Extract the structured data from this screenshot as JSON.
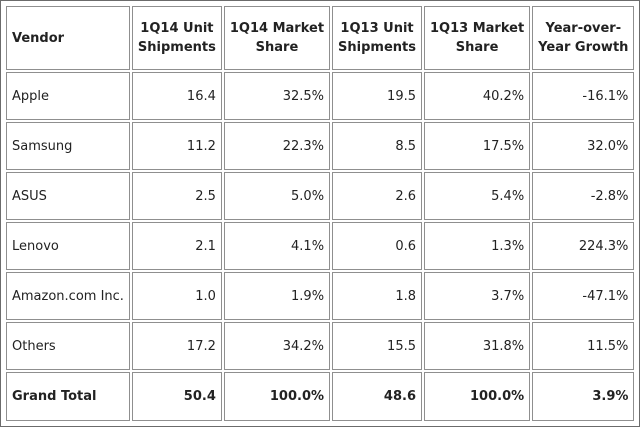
{
  "table": {
    "headers": {
      "vendor": "Vendor",
      "q14_units_line1": "1Q14 Unit",
      "q14_units_line2": "Shipments",
      "q14_share_line1": "1Q14 Market",
      "q14_share_line2": "Share",
      "q13_units_line1": "1Q13 Unit",
      "q13_units_line2": "Shipments",
      "q13_share_line1": "1Q13 Market",
      "q13_share_line2": "Share",
      "yoy_line1": "Year-over-",
      "yoy_line2": "Year Growth"
    },
    "rows": [
      {
        "vendor": "Apple",
        "q14_units": "16.4",
        "q14_share": "32.5%",
        "q13_units": "19.5",
        "q13_share": "40.2%",
        "yoy": "-16.1%"
      },
      {
        "vendor": "Samsung",
        "q14_units": "11.2",
        "q14_share": "22.3%",
        "q13_units": "8.5",
        "q13_share": "17.5%",
        "yoy": "32.0%"
      },
      {
        "vendor": "ASUS",
        "q14_units": "2.5",
        "q14_share": "5.0%",
        "q13_units": "2.6",
        "q13_share": "5.4%",
        "yoy": "-2.8%"
      },
      {
        "vendor": "Lenovo",
        "q14_units": "2.1",
        "q14_share": "4.1%",
        "q13_units": "0.6",
        "q13_share": "1.3%",
        "yoy": "224.3%"
      },
      {
        "vendor": "Amazon.com Inc.",
        "q14_units": "1.0",
        "q14_share": "1.9%",
        "q13_units": "1.8",
        "q13_share": "3.7%",
        "yoy": "-47.1%"
      },
      {
        "vendor": "Others",
        "q14_units": "17.2",
        "q14_share": "34.2%",
        "q13_units": "15.5",
        "q13_share": "31.8%",
        "yoy": "11.5%"
      }
    ],
    "total": {
      "vendor": "Grand Total",
      "q14_units": "50.4",
      "q14_share": "100.0%",
      "q13_units": "48.6",
      "q13_share": "100.0%",
      "yoy": "3.9%"
    }
  }
}
